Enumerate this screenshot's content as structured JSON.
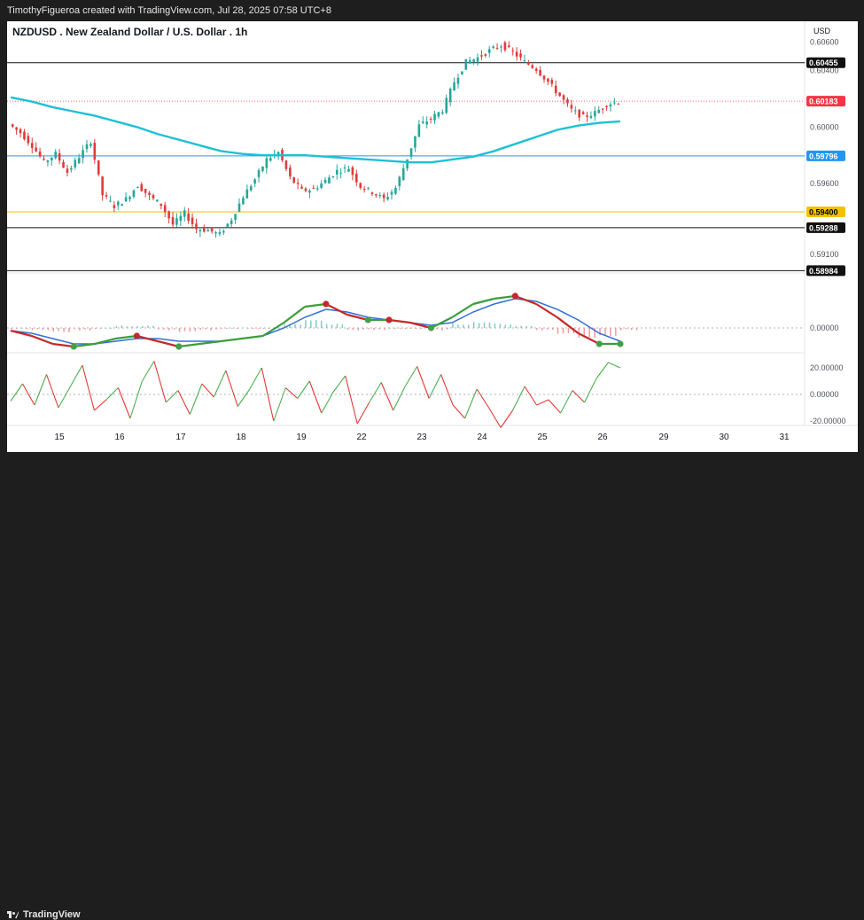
{
  "header": {
    "credit": "TimothyFigueroa created with TradingView.com, Jul 28, 2025 07:58 UTC+8"
  },
  "footer": {
    "logo_text": "TradingView"
  },
  "colors": {
    "up": "#26a69a",
    "down": "#e03b3b",
    "ma": "#1ec0d6",
    "macd_fast": "#3a9e3a",
    "macd_slow": "#2f6fd8",
    "macd_red": "#c62828",
    "rsi_up": "#4caf50",
    "rsi_down": "#e53935",
    "level_black": "#111111",
    "level_blue": "#2196f3",
    "level_yellow": "#f2c200",
    "level_red": "#f23645"
  },
  "chart_data": [
    {
      "type": "candlestick",
      "title": "NZDUSD . New Zealand Dollar / U.S. Dollar . 1h",
      "currency": "USD",
      "x_ticks": [
        "15",
        "16",
        "17",
        "18",
        "19",
        "22",
        "23",
        "24",
        "25",
        "26",
        "29",
        "30",
        "31"
      ],
      "y_ticks": [
        "0.60600",
        "0.60400",
        "0.60000",
        "0.59600",
        "0.59100"
      ],
      "ylim": [
        0.5893,
        0.6066
      ],
      "ohlc_close_path": [
        0.6002,
        0.5996,
        0.5987,
        0.5975,
        0.5981,
        0.5968,
        0.5979,
        0.599,
        0.5952,
        0.5944,
        0.5949,
        0.5959,
        0.5951,
        0.5945,
        0.5931,
        0.5939,
        0.5928,
        0.5927,
        0.5924,
        0.5935,
        0.5951,
        0.5963,
        0.5977,
        0.5982,
        0.5964,
        0.5955,
        0.5956,
        0.5962,
        0.5969,
        0.5971,
        0.5958,
        0.5954,
        0.5949,
        0.5957,
        0.5978,
        0.6001,
        0.6006,
        0.6012,
        0.6032,
        0.6046,
        0.6049,
        0.6054,
        0.6058,
        0.6053,
        0.6046,
        0.6041,
        0.6032,
        0.6022,
        0.6012,
        0.6007,
        0.601,
        0.6016,
        0.6018
      ],
      "moving_average": [
        0.6021,
        0.6018,
        0.6014,
        0.6011,
        0.6008,
        0.6004,
        0.6,
        0.5995,
        0.5991,
        0.5987,
        0.5983,
        0.5981,
        0.598,
        0.598,
        0.598,
        0.5979,
        0.5978,
        0.5977,
        0.5976,
        0.5975,
        0.5975,
        0.5977,
        0.5979,
        0.5983,
        0.5988,
        0.5993,
        0.5998,
        0.6001,
        0.6003,
        0.6004
      ],
      "price_levels": [
        {
          "value": "0.60455",
          "color": "black"
        },
        {
          "value": "0.60183",
          "color": "red"
        },
        {
          "value": "0.59796",
          "color": "blue"
        },
        {
          "value": "0.59400",
          "color": "yellow"
        },
        {
          "value": "0.59288",
          "color": "black"
        },
        {
          "value": "0.58984",
          "color": "black"
        }
      ]
    },
    {
      "type": "line",
      "name": "macd",
      "y_ticks": [
        "0.00000"
      ],
      "fast": [
        -0.0001,
        -0.0003,
        -0.0006,
        -0.0007,
        -0.0006,
        -0.0004,
        -0.0003,
        -0.0005,
        -0.0007,
        -0.0006,
        -0.0005,
        -0.0004,
        -0.0003,
        0.0002,
        0.0008,
        0.0009,
        0.0005,
        0.0003,
        0.0003,
        0.0002,
        0.0,
        0.0004,
        0.0009,
        0.0011,
        0.0012,
        0.0009,
        0.0004,
        -0.0002,
        -0.0006,
        -0.0006
      ],
      "slow": [
        -0.0001,
        -0.0002,
        -0.0004,
        -0.0006,
        -0.0006,
        -0.0005,
        -0.0004,
        -0.0004,
        -0.0005,
        -0.0005,
        -0.0005,
        -0.0004,
        -0.0003,
        0.0,
        0.0004,
        0.0007,
        0.0006,
        0.0004,
        0.0003,
        0.0002,
        0.0001,
        0.0002,
        0.0006,
        0.0009,
        0.0011,
        0.001,
        0.0007,
        0.0003,
        -0.0002,
        -0.0005
      ]
    },
    {
      "type": "line",
      "name": "oscillator",
      "y_ticks": [
        "20.00000",
        "0.00000",
        "-20.00000"
      ],
      "values": [
        -5,
        8,
        -8,
        15,
        -10,
        6,
        22,
        -12,
        -4,
        5,
        -18,
        10,
        25,
        -6,
        3,
        -15,
        8,
        -2,
        18,
        -9,
        4,
        20,
        -20,
        5,
        -3,
        10,
        -14,
        2,
        14,
        -22,
        -6,
        9,
        -12,
        6,
        21,
        -3,
        15,
        -8,
        -18,
        4,
        -10,
        -25,
        -12,
        6,
        -8,
        -4,
        -14,
        3,
        -6,
        12,
        24,
        20
      ]
    }
  ]
}
